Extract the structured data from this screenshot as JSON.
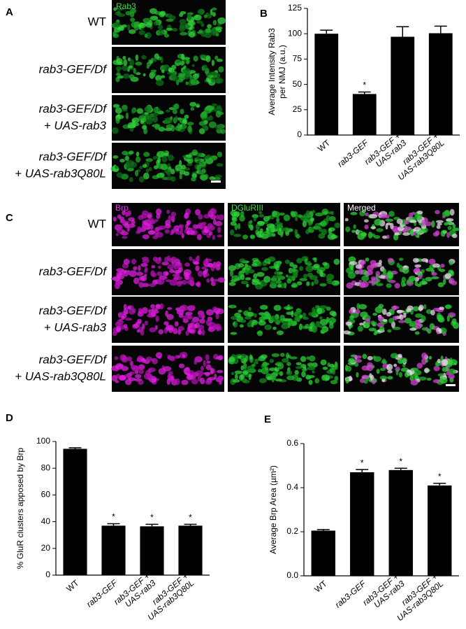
{
  "panels": {
    "A": {
      "label": "A",
      "channel": "Rab3",
      "rows": [
        [
          "WT"
        ],
        [
          "rab3-GEF/Df"
        ],
        [
          "rab3-GEF/Df",
          "+ UAS-rab3"
        ],
        [
          "rab3-GEF/Df",
          "+ UAS-rab3Q80L"
        ]
      ]
    },
    "C": {
      "label": "C",
      "channels": [
        "Brp",
        "DGluRIII",
        "Merged"
      ],
      "rows": [
        [
          "WT"
        ],
        [
          "rab3-GEF/Df"
        ],
        [
          "rab3-GEF/Df",
          "+ UAS-rab3"
        ],
        [
          "rab3-GEF/Df",
          "+ UAS-rab3Q80L"
        ]
      ]
    }
  },
  "chart_data": [
    {
      "type": "bar",
      "panel": "B",
      "y_label": [
        "Average Intensity Rab3",
        "per NMJ (a.u.)"
      ],
      "categories": [
        [
          "WT"
        ],
        [
          "rab3-GEF"
        ],
        [
          "rab3-GEF +",
          "UAS-rab3"
        ],
        [
          "rab3-GEF +",
          "UAS-rab3Q80L"
        ]
      ],
      "values": [
        100,
        40.5,
        97,
        100.5
      ],
      "errors": [
        3.5,
        2,
        10,
        7
      ],
      "markers": [
        null,
        "*",
        null,
        null
      ],
      "color": "#000000",
      "ylim": [
        0,
        125
      ],
      "yticks": [
        0,
        25,
        50,
        75,
        100,
        125
      ]
    },
    {
      "type": "bar",
      "panel": "D",
      "y_label": [
        "% GluR clusters apposed by Brp"
      ],
      "categories": [
        [
          "WT"
        ],
        [
          "rab3-GEF"
        ],
        [
          "rab3-GEF +",
          "UAS-rab3"
        ],
        [
          "rab3-GEF +",
          "UAS-rab3Q80L"
        ]
      ],
      "values": [
        94.5,
        37,
        36.5,
        37
      ],
      "errors": [
        0.8,
        1.5,
        1.5,
        1
      ],
      "markers": [
        null,
        "*",
        "*",
        "*"
      ],
      "color": "#000000",
      "ylim": [
        0,
        100
      ],
      "yticks": [
        0,
        20,
        40,
        60,
        80,
        100
      ]
    },
    {
      "type": "bar",
      "panel": "E",
      "y_label": [
        "Average Brp Area (µm²)"
      ],
      "categories": [
        [
          "WT"
        ],
        [
          "rab3-GEF"
        ],
        [
          "rab3-GEF +",
          "UAS-rab3"
        ],
        [
          "rab3-GEF +",
          "UAS-rab3Q80L"
        ]
      ],
      "values": [
        0.205,
        0.47,
        0.48,
        0.41
      ],
      "errors": [
        0.005,
        0.012,
        0.008,
        0.01
      ],
      "markers": [
        null,
        "*",
        "*",
        "*"
      ],
      "color": "#000000",
      "ylim": [
        0,
        0.6
      ],
      "yticks": [
        {
          "value": 0,
          "label": "0.0"
        },
        0.2,
        0.4,
        0.6
      ]
    }
  ]
}
